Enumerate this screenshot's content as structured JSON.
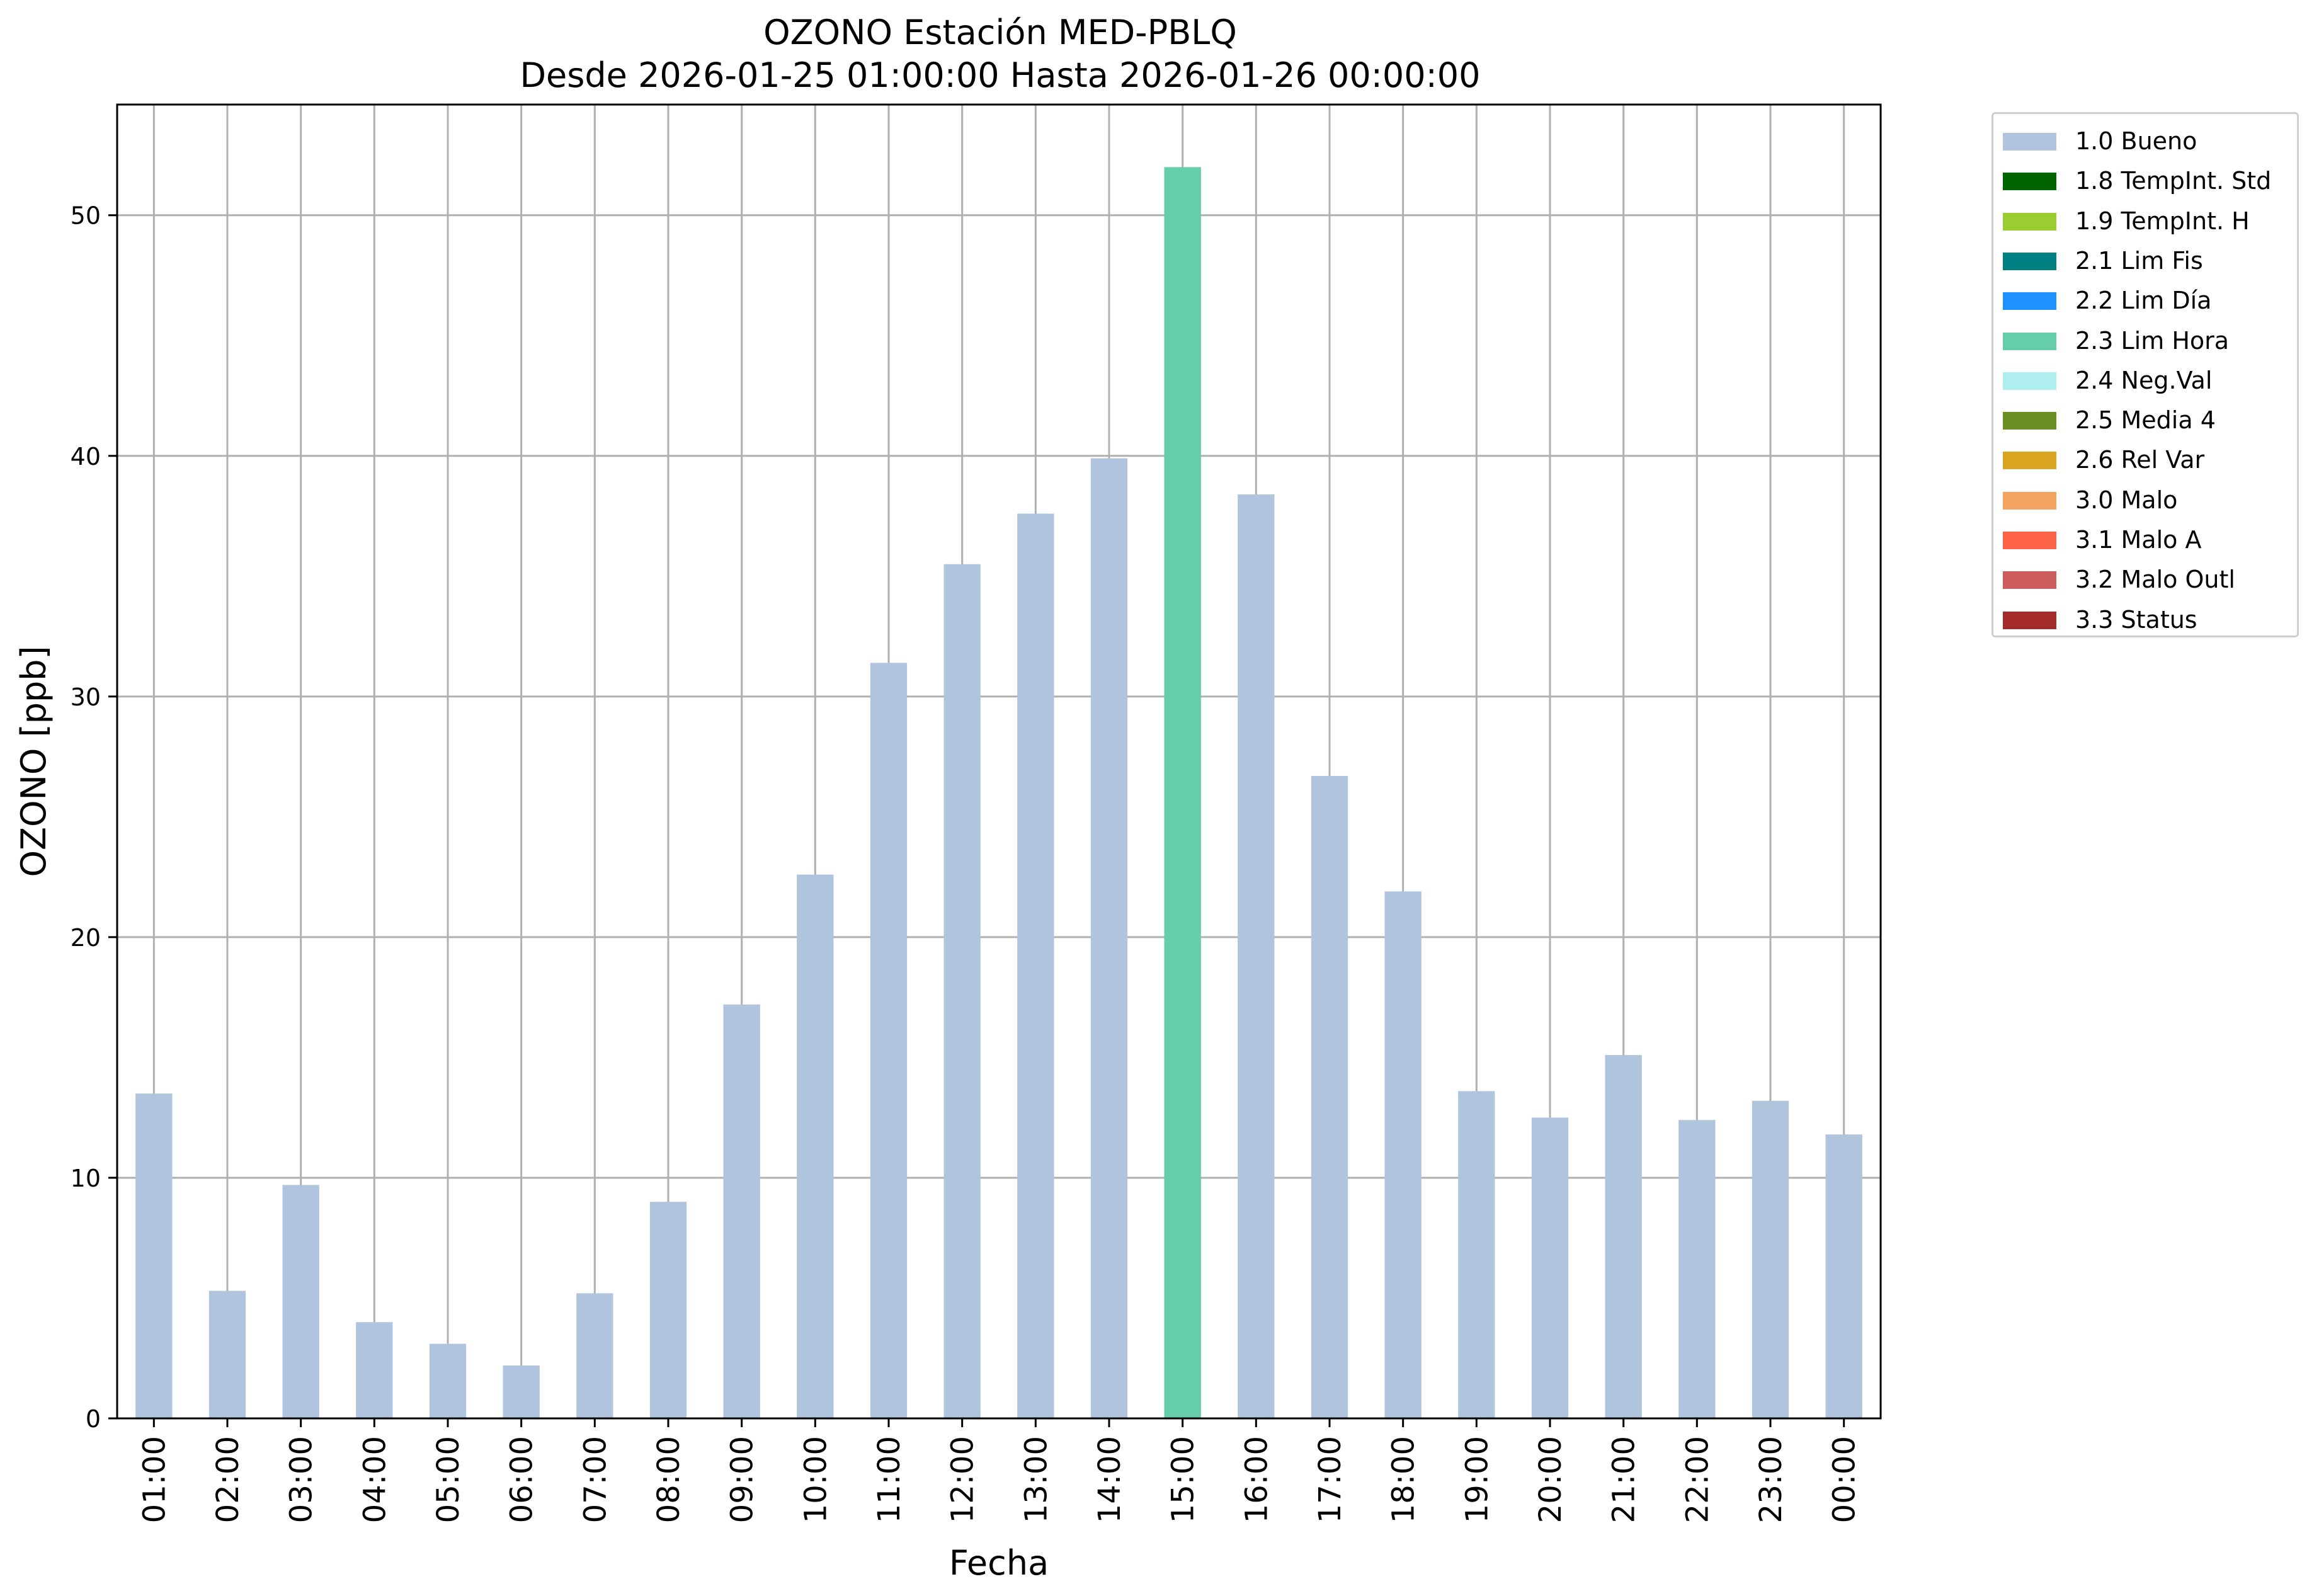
{
  "chart_data": {
    "type": "bar",
    "title": "OZONO Estación MED-PBLQ",
    "subtitle": "Desde 2026-01-25 01:00:00 Hasta 2026-01-26 00:00:00",
    "xlabel": "Fecha",
    "ylabel": "OZONO [ppb]",
    "ylim": [
      0,
      54.6
    ],
    "yticks": [
      0,
      10,
      20,
      30,
      40,
      50
    ],
    "grid": true,
    "legend_position": "outside-top-right",
    "categories": [
      "01:00",
      "02:00",
      "03:00",
      "04:00",
      "05:00",
      "06:00",
      "07:00",
      "08:00",
      "09:00",
      "10:00",
      "11:00",
      "12:00",
      "13:00",
      "14:00",
      "15:00",
      "16:00",
      "17:00",
      "18:00",
      "19:00",
      "20:00",
      "21:00",
      "22:00",
      "23:00",
      "00:00"
    ],
    "values": [
      13.5,
      5.3,
      9.7,
      4.0,
      3.1,
      2.2,
      5.2,
      9.0,
      17.2,
      22.6,
      31.4,
      35.5,
      37.6,
      39.9,
      52.0,
      38.4,
      26.7,
      21.9,
      13.6,
      12.5,
      15.1,
      12.4,
      13.2,
      11.8
    ],
    "flags": [
      "1.0 Bueno",
      "1.0 Bueno",
      "1.0 Bueno",
      "1.0 Bueno",
      "1.0 Bueno",
      "1.0 Bueno",
      "1.0 Bueno",
      "1.0 Bueno",
      "1.0 Bueno",
      "1.0 Bueno",
      "1.0 Bueno",
      "1.0 Bueno",
      "1.0 Bueno",
      "1.0 Bueno",
      "2.3 Lim Hora",
      "1.0 Bueno",
      "1.0 Bueno",
      "1.0 Bueno",
      "1.0 Bueno",
      "1.0 Bueno",
      "1.0 Bueno",
      "1.0 Bueno",
      "1.0 Bueno",
      "1.0 Bueno"
    ],
    "legend": [
      {
        "label": "1.0 Bueno",
        "color": "#b0c4de"
      },
      {
        "label": "1.8 TempInt. Std",
        "color": "#006400"
      },
      {
        "label": "1.9 TempInt. H",
        "color": "#9acd32"
      },
      {
        "label": "2.1 Lim Fis",
        "color": "#008080"
      },
      {
        "label": "2.2 Lim Día",
        "color": "#1e90ff"
      },
      {
        "label": "2.3 Lim Hora",
        "color": "#66cdaa"
      },
      {
        "label": "2.4 Neg.Val",
        "color": "#afeeee"
      },
      {
        "label": "2.5 Media 4",
        "color": "#6b8e23"
      },
      {
        "label": "2.6 Rel Var",
        "color": "#daa520"
      },
      {
        "label": "3.0 Malo",
        "color": "#f4a460"
      },
      {
        "label": "3.1 Malo A",
        "color": "#ff6347"
      },
      {
        "label": "3.2 Malo Outl",
        "color": "#cd5c5c"
      },
      {
        "label": "3.3 Status",
        "color": "#a52a2a"
      }
    ]
  }
}
